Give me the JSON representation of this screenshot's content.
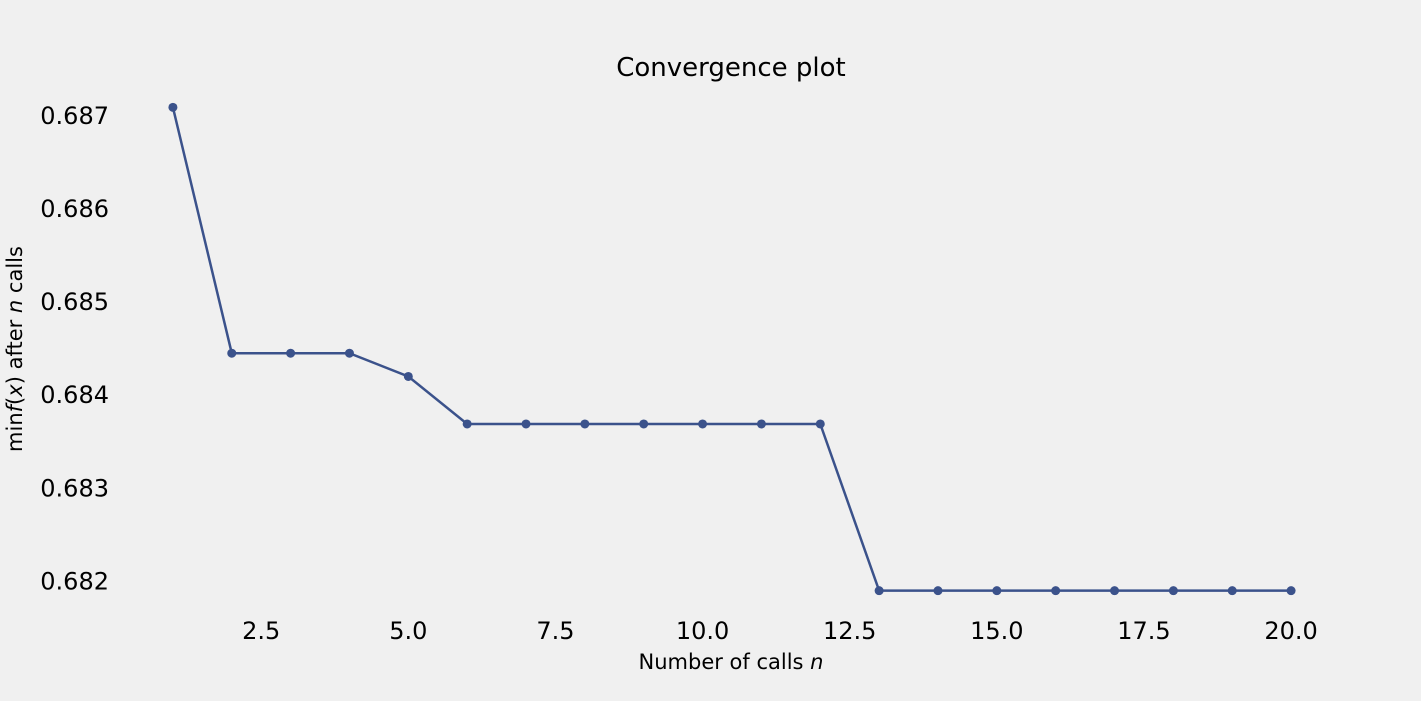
{
  "chart_data": {
    "type": "line",
    "title": "Convergence plot",
    "xlabel_parts": [
      {
        "text": "Number of calls ",
        "italic": false
      },
      {
        "text": "n",
        "italic": true
      }
    ],
    "ylabel_parts": [
      {
        "text": "min",
        "italic": false
      },
      {
        "text": "f",
        "italic": true
      },
      {
        "text": "(",
        "italic": false
      },
      {
        "text": "x",
        "italic": true
      },
      {
        "text": ") after ",
        "italic": false
      },
      {
        "text": "n",
        "italic": true
      },
      {
        "text": " calls",
        "italic": false
      }
    ],
    "x": [
      1,
      2,
      3,
      4,
      5,
      6,
      7,
      8,
      9,
      10,
      11,
      12,
      13,
      14,
      15,
      16,
      17,
      18,
      19,
      20
    ],
    "series": [
      {
        "values": [
          0.68708,
          0.68444,
          0.68444,
          0.68444,
          0.68419,
          0.68368,
          0.68368,
          0.68368,
          0.68368,
          0.68368,
          0.68368,
          0.68368,
          0.68189,
          0.68189,
          0.68189,
          0.68189,
          0.68189,
          0.68189,
          0.68189,
          0.68189
        ],
        "color": "#3b528b"
      }
    ],
    "xlim": [
      0.05,
      20.95
    ],
    "ylim": [
      0.68165,
      0.68732
    ],
    "xticks": [
      2.5,
      5.0,
      7.5,
      10.0,
      12.5,
      15.0,
      17.5,
      20.0
    ],
    "xtick_labels": [
      "2.5",
      "5.0",
      "7.5",
      "10.0",
      "12.5",
      "15.0",
      "17.5",
      "20.0"
    ],
    "yticks": [
      0.682,
      0.683,
      0.684,
      0.685,
      0.686,
      0.687
    ],
    "ytick_labels": [
      "0.682",
      "0.683",
      "0.684",
      "0.685",
      "0.686",
      "0.687"
    ],
    "grid": false,
    "marker": "circle"
  }
}
